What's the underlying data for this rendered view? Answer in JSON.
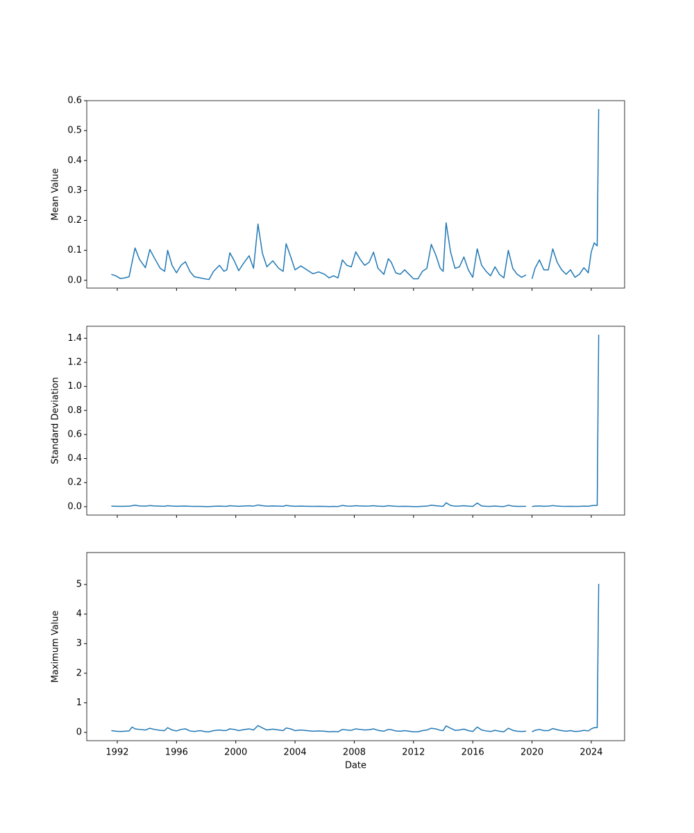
{
  "chart_data": [
    {
      "type": "line",
      "ylabel": "Mean Value",
      "color": "#1f77b4",
      "x": [
        1991.6,
        1991.9,
        1992.2,
        1992.5,
        1992.8,
        1993.0,
        1993.2,
        1993.5,
        1993.9,
        1994.2,
        1994.5,
        1994.9,
        1995.2,
        1995.4,
        1995.7,
        1996.0,
        1996.3,
        1996.6,
        1996.9,
        1997.2,
        1997.6,
        1998.0,
        1998.2,
        1998.5,
        1998.9,
        1999.2,
        1999.4,
        1999.6,
        1999.9,
        2000.2,
        2000.5,
        2000.9,
        2001.2,
        2001.5,
        2001.8,
        2002.1,
        2002.5,
        2002.9,
        2003.2,
        2003.4,
        2003.7,
        2004.0,
        2004.4,
        2004.8,
        2005.2,
        2005.6,
        2006.0,
        2006.3,
        2006.6,
        2006.9,
        2007.2,
        2007.5,
        2007.8,
        2008.1,
        2008.4,
        2008.7,
        2009.0,
        2009.3,
        2009.6,
        2010.0,
        2010.3,
        2010.5,
        2010.8,
        2011.1,
        2011.4,
        2011.7,
        2012.0,
        2012.3,
        2012.6,
        2012.9,
        2013.2,
        2013.5,
        2013.8,
        2014.0,
        2014.2,
        2014.5,
        2014.8,
        2015.1,
        2015.4,
        2015.7,
        2016.0,
        2016.3,
        2016.6,
        2016.9,
        2017.2,
        2017.5,
        2017.8,
        2018.1,
        2018.4,
        2018.7,
        2019.0,
        2019.3,
        2019.6,
        2019.8,
        2020.0,
        2020.2,
        2020.5,
        2020.8,
        2021.1,
        2021.4,
        2021.7,
        2022.0,
        2022.3,
        2022.6,
        2022.9,
        2023.2,
        2023.5,
        2023.8,
        2024.0,
        2024.2,
        2024.4,
        2024.5
      ],
      "values": [
        0.02,
        0.015,
        0.006,
        0.008,
        0.012,
        0.06,
        0.108,
        0.07,
        0.042,
        0.103,
        0.075,
        0.04,
        0.03,
        0.1,
        0.05,
        0.025,
        0.05,
        0.062,
        0.03,
        0.012,
        0.008,
        0.004,
        0.003,
        0.03,
        0.05,
        0.03,
        0.035,
        0.092,
        0.065,
        0.032,
        0.055,
        0.082,
        0.04,
        0.188,
        0.09,
        0.045,
        0.065,
        0.04,
        0.03,
        0.122,
        0.08,
        0.035,
        0.048,
        0.035,
        0.022,
        0.028,
        0.02,
        0.008,
        0.015,
        0.008,
        0.068,
        0.05,
        0.045,
        0.095,
        0.07,
        0.05,
        0.06,
        0.094,
        0.04,
        0.02,
        0.072,
        0.06,
        0.025,
        0.02,
        0.035,
        0.02,
        0.005,
        0.005,
        0.03,
        0.04,
        0.12,
        0.085,
        0.04,
        0.03,
        0.192,
        0.095,
        0.04,
        0.045,
        0.078,
        0.035,
        0.01,
        0.105,
        0.05,
        0.03,
        0.015,
        0.045,
        0.02,
        0.008,
        0.1,
        0.04,
        0.02,
        0.01,
        0.018,
        null,
        0.005,
        0.04,
        0.068,
        0.035,
        0.035,
        0.105,
        0.06,
        0.035,
        0.02,
        0.035,
        0.01,
        0.02,
        0.042,
        0.025,
        0.095,
        0.125,
        0.115,
        0.572
      ],
      "xlim": [
        1989.94,
        2026.25
      ],
      "xticks": [
        1992,
        1996,
        2000,
        2004,
        2008,
        2012,
        2016,
        2020,
        2024
      ],
      "ylim": [
        -0.026,
        0.6
      ],
      "yticks": [
        {
          "value": 0,
          "label": "0.0"
        },
        0.1,
        0.2,
        0.3,
        0.4,
        0.5,
        0.6
      ]
    },
    {
      "type": "line",
      "ylabel": "Standard Deviation",
      "color": "#1f77b4",
      "x": [
        1991.6,
        1991.9,
        1992.2,
        1992.5,
        1992.8,
        1993.0,
        1993.2,
        1993.5,
        1993.9,
        1994.2,
        1994.5,
        1994.9,
        1995.2,
        1995.4,
        1995.7,
        1996.0,
        1996.3,
        1996.6,
        1996.9,
        1997.2,
        1997.6,
        1998.0,
        1998.2,
        1998.5,
        1998.9,
        1999.2,
        1999.4,
        1999.6,
        1999.9,
        2000.2,
        2000.5,
        2000.9,
        2001.2,
        2001.5,
        2001.8,
        2002.1,
        2002.5,
        2002.9,
        2003.2,
        2003.4,
        2003.7,
        2004.0,
        2004.4,
        2004.8,
        2005.2,
        2005.6,
        2006.0,
        2006.3,
        2006.6,
        2006.9,
        2007.2,
        2007.5,
        2007.8,
        2008.1,
        2008.4,
        2008.7,
        2009.0,
        2009.3,
        2009.6,
        2010.0,
        2010.3,
        2010.5,
        2010.8,
        2011.1,
        2011.4,
        2011.7,
        2012.0,
        2012.3,
        2012.6,
        2012.9,
        2013.2,
        2013.5,
        2013.8,
        2014.0,
        2014.2,
        2014.5,
        2014.8,
        2015.1,
        2015.4,
        2015.7,
        2016.0,
        2016.3,
        2016.6,
        2016.9,
        2017.2,
        2017.5,
        2017.8,
        2018.1,
        2018.4,
        2018.7,
        2019.0,
        2019.3,
        2019.6,
        2019.8,
        2020.0,
        2020.2,
        2020.5,
        2020.8,
        2021.1,
        2021.4,
        2021.7,
        2022.0,
        2022.3,
        2022.6,
        2022.9,
        2023.2,
        2023.5,
        2023.8,
        2024.0,
        2024.2,
        2024.4,
        2024.5
      ],
      "values": [
        0.004,
        0.003,
        0.003,
        0.003,
        0.004,
        0.008,
        0.012,
        0.006,
        0.004,
        0.009,
        0.006,
        0.004,
        0.003,
        0.008,
        0.005,
        0.003,
        0.004,
        0.005,
        0.003,
        0.002,
        0.002,
        0.001,
        0.001,
        0.003,
        0.004,
        0.003,
        0.003,
        0.008,
        0.005,
        0.003,
        0.005,
        0.007,
        0.004,
        0.014,
        0.008,
        0.004,
        0.006,
        0.004,
        0.003,
        0.01,
        0.006,
        0.003,
        0.004,
        0.003,
        0.002,
        0.003,
        0.002,
        0.001,
        0.002,
        0.001,
        0.01,
        0.005,
        0.004,
        0.008,
        0.006,
        0.004,
        0.005,
        0.008,
        0.004,
        0.002,
        0.008,
        0.006,
        0.003,
        0.002,
        0.003,
        0.002,
        0.001,
        0.001,
        0.003,
        0.004,
        0.012,
        0.008,
        0.004,
        0.003,
        0.032,
        0.01,
        0.004,
        0.005,
        0.008,
        0.004,
        0.002,
        0.03,
        0.006,
        0.003,
        0.002,
        0.005,
        0.002,
        0.001,
        0.012,
        0.004,
        0.002,
        0.002,
        0.003,
        null,
        0.001,
        0.004,
        0.006,
        0.003,
        0.004,
        0.009,
        0.005,
        0.003,
        0.002,
        0.003,
        0.002,
        0.002,
        0.004,
        0.003,
        0.008,
        0.01,
        0.01,
        1.43
      ],
      "xlim": [
        1989.94,
        2026.25
      ],
      "xticks": [
        1992,
        1996,
        2000,
        2004,
        2008,
        2012,
        2016,
        2020,
        2024
      ],
      "ylim": [
        -0.07,
        1.5
      ],
      "yticks": [
        {
          "value": 0,
          "label": "0.0"
        },
        0.2,
        0.4,
        0.6,
        0.8,
        {
          "value": 1,
          "label": "1.0"
        },
        1.2,
        1.4
      ]
    },
    {
      "type": "line",
      "ylabel": "Maximum Value",
      "xlabel": "Date",
      "color": "#1f77b4",
      "x": [
        1991.6,
        1991.9,
        1992.2,
        1992.5,
        1992.8,
        1993.0,
        1993.2,
        1993.5,
        1993.9,
        1994.2,
        1994.5,
        1994.9,
        1995.2,
        1995.4,
        1995.7,
        1996.0,
        1996.3,
        1996.6,
        1996.9,
        1997.2,
        1997.6,
        1998.0,
        1998.2,
        1998.5,
        1998.9,
        1999.2,
        1999.4,
        1999.6,
        1999.9,
        2000.2,
        2000.5,
        2000.9,
        2001.2,
        2001.5,
        2001.8,
        2002.1,
        2002.5,
        2002.9,
        2003.2,
        2003.4,
        2003.7,
        2004.0,
        2004.4,
        2004.8,
        2005.2,
        2005.6,
        2006.0,
        2006.3,
        2006.6,
        2006.9,
        2007.2,
        2007.5,
        2007.8,
        2008.1,
        2008.4,
        2008.7,
        2009.0,
        2009.3,
        2009.6,
        2010.0,
        2010.3,
        2010.5,
        2010.8,
        2011.1,
        2011.4,
        2011.7,
        2012.0,
        2012.3,
        2012.6,
        2012.9,
        2013.2,
        2013.5,
        2013.8,
        2014.0,
        2014.2,
        2014.5,
        2014.8,
        2015.1,
        2015.4,
        2015.7,
        2016.0,
        2016.3,
        2016.6,
        2016.9,
        2017.2,
        2017.5,
        2017.8,
        2018.1,
        2018.4,
        2018.7,
        2019.0,
        2019.3,
        2019.6,
        2019.8,
        2020.0,
        2020.2,
        2020.5,
        2020.8,
        2021.1,
        2021.4,
        2021.7,
        2022.0,
        2022.3,
        2022.6,
        2022.9,
        2023.2,
        2023.5,
        2023.8,
        2024.0,
        2024.2,
        2024.4,
        2024.5
      ],
      "values": [
        0.06,
        0.04,
        0.03,
        0.04,
        0.05,
        0.18,
        0.12,
        0.1,
        0.08,
        0.14,
        0.1,
        0.07,
        0.06,
        0.16,
        0.08,
        0.05,
        0.1,
        0.12,
        0.05,
        0.03,
        0.06,
        0.02,
        0.02,
        0.06,
        0.08,
        0.06,
        0.07,
        0.12,
        0.1,
        0.06,
        0.09,
        0.12,
        0.08,
        0.23,
        0.15,
        0.08,
        0.11,
        0.08,
        0.06,
        0.15,
        0.12,
        0.06,
        0.08,
        0.06,
        0.04,
        0.05,
        0.04,
        0.02,
        0.03,
        0.02,
        0.1,
        0.08,
        0.07,
        0.12,
        0.1,
        0.08,
        0.09,
        0.12,
        0.07,
        0.04,
        0.1,
        0.09,
        0.05,
        0.04,
        0.06,
        0.04,
        0.02,
        0.02,
        0.06,
        0.08,
        0.14,
        0.12,
        0.07,
        0.06,
        0.22,
        0.14,
        0.07,
        0.08,
        0.11,
        0.06,
        0.03,
        0.18,
        0.08,
        0.05,
        0.03,
        0.07,
        0.04,
        0.02,
        0.14,
        0.07,
        0.04,
        0.03,
        0.04,
        null,
        0.02,
        0.07,
        0.1,
        0.06,
        0.06,
        0.13,
        0.09,
        0.06,
        0.04,
        0.06,
        0.03,
        0.04,
        0.07,
        0.05,
        0.12,
        0.16,
        0.16,
        5.02
      ],
      "xlim": [
        1989.94,
        2026.25
      ],
      "xticks": [
        1992,
        1996,
        2000,
        2004,
        2008,
        2012,
        2016,
        2020,
        2024
      ],
      "ylim": [
        -0.28,
        6.08
      ],
      "yticks": [
        0,
        1,
        2,
        3,
        4,
        5
      ]
    }
  ]
}
